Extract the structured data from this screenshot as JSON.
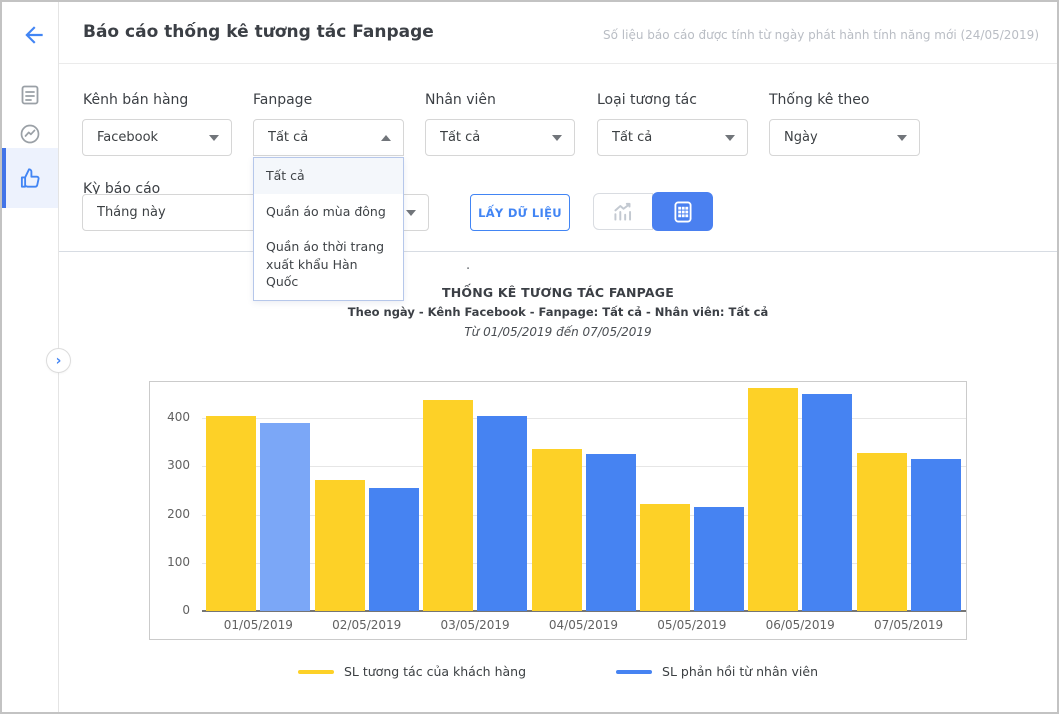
{
  "header": {
    "title": "Báo cáo thống kê tương tác Fanpage",
    "note": "Số liệu báo cáo được tính từ ngày phát hành tính năng mới (24/05/2019)"
  },
  "sidebar": {
    "items": [
      {
        "name": "back",
        "icon": "arrow-left-icon"
      },
      {
        "name": "reports",
        "icon": "document-icon"
      },
      {
        "name": "messenger",
        "icon": "messenger-icon"
      },
      {
        "name": "fanpage-interactions",
        "icon": "thumbs-up-icon",
        "active": true
      }
    ],
    "collapse_glyph": "›"
  },
  "filters": {
    "kenh_ban_hang": {
      "label": "Kênh bán hàng",
      "value": "Facebook"
    },
    "fanpage": {
      "label": "Fanpage",
      "value": "Tất cả",
      "open": true,
      "options": [
        "Tất cả",
        "Quần áo mùa đông",
        "Quần áo thời trang xuất khẩu Hàn Quốc"
      ],
      "selected_index": 0
    },
    "nhan_vien": {
      "label": "Nhân viên",
      "value": "Tất cả"
    },
    "loai_tuong_tac": {
      "label": "Loại tương tác",
      "value": "Tất cả"
    },
    "thong_ke_theo": {
      "label": "Thống kê theo",
      "value": "Ngày"
    },
    "ky_bao_cao": {
      "label": "Kỳ báo cáo",
      "value": "Tháng này"
    }
  },
  "actions": {
    "get_data_label": "LẤY DỮ LIỆU",
    "view_toggle": {
      "chart_view_active": false,
      "table_view_active": true
    }
  },
  "misc": {
    "stray_dot": "."
  },
  "chart_data": {
    "type": "bar",
    "title": "THỐNG KÊ TƯƠNG TÁC FANPAGE",
    "subtitle": "Theo ngày - Kênh Facebook - Fanpage: Tất cả - Nhân viên: Tất cả",
    "date_range": "Từ 01/05/2019 đến 07/05/2019",
    "categories": [
      "01/05/2019",
      "02/05/2019",
      "03/05/2019",
      "04/05/2019",
      "05/05/2019",
      "06/05/2019",
      "07/05/2019"
    ],
    "series": [
      {
        "name": "SL tương tác của khách hàng",
        "color": "#FDD127",
        "values": [
          405,
          272,
          437,
          337,
          222,
          462,
          327
        ]
      },
      {
        "name": "SL phản hồi từ nhân viên",
        "color": "#4683F2",
        "values": [
          390,
          255,
          405,
          325,
          215,
          450,
          315
        ]
      }
    ],
    "highlight": {
      "series": 1,
      "index": 0,
      "color": "#7BA7F7"
    },
    "ylim": [
      0,
      475
    ],
    "yticks": [
      0,
      100,
      200,
      300,
      400
    ],
    "grid": true,
    "legend_position": "bottom"
  },
  "colors": {
    "accent": "#4285f4",
    "bar_yellow": "#FDD127",
    "bar_blue": "#4683F2",
    "bar_blue_light": "#7BA7F7"
  }
}
